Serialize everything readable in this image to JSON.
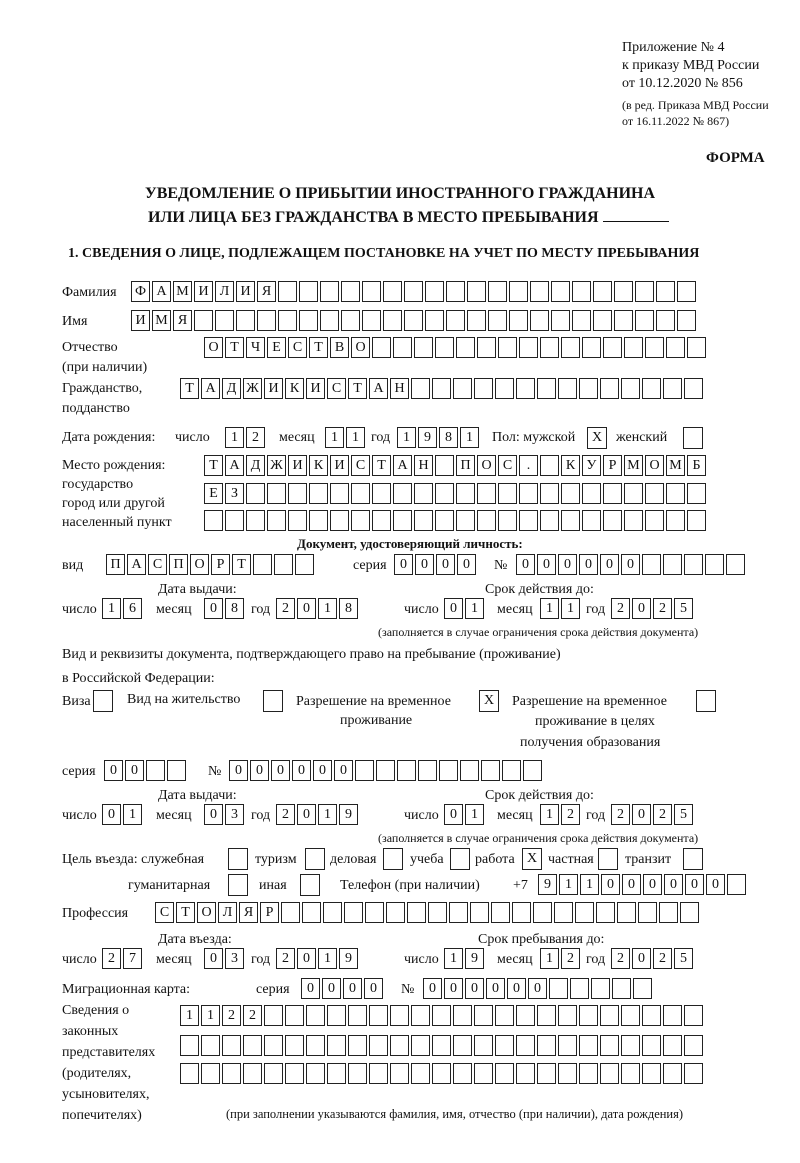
{
  "header": {
    "line1": "Приложение № 4",
    "line2": "к приказу МВД России",
    "line3": "от 10.12.2020 № 856",
    "line4": "(в ред. Приказа МВД России",
    "line5": "от 16.11.2022 № 867)",
    "forma": "ФОРМА",
    "title1": "УВЕДОМЛЕНИЕ О ПРИБЫТИИ ИНОСТРАННОГО ГРАЖДАНИНА",
    "title2": "ИЛИ ЛИЦА БЕЗ ГРАЖДАНСТВА В МЕСТО ПРЕБЫВАНИЯ",
    "section1": "1. СВЕДЕНИЯ О ЛИЦЕ, ПОДЛЕЖАЩЕМ ПОСТАНОВКЕ НА УЧЕТ ПО МЕСТУ ПРЕБЫВАНИЯ"
  },
  "labels": {
    "surname": "Фамилия",
    "name": "Имя",
    "patronymic": "Отчество",
    "patronymic_note": "(при наличии)",
    "citizenship1": "Гражданство,",
    "citizenship2": "подданство",
    "birth_date": "Дата рождения:",
    "day": "число",
    "month": "месяц",
    "year": "год",
    "sex": "Пол: мужской",
    "female": "женский",
    "birthplace1": "Место рождения:",
    "birthplace2": "государство",
    "birthplace3": "город или другой",
    "birthplace4": "населенный пункт",
    "id_doc": "Документ, удостоверяющий личность:",
    "kind": "вид",
    "series": "серия",
    "number": "№",
    "issue_date": "Дата выдачи:",
    "valid_until": "Срок действия до:",
    "valid_note": "(заполняется в случае ограничения срока действия документа)",
    "permit_doc1": "Вид и реквизиты документа, подтверждающего право на пребывание (проживание)",
    "permit_doc2": "в Российской Федерации:",
    "visa": "Виза",
    "residence": "Вид на жительство",
    "trp1": "Разрешение на временное",
    "trp2": "проживание",
    "trp_edu1": "Разрешение на временное",
    "trp_edu2": "проживание в целях",
    "trp_edu3": "получения образования",
    "purpose": "Цель въезда: служебная",
    "tourism": "туризм",
    "business": "деловая",
    "study": "учеба",
    "work": "работа",
    "private": "частная",
    "transit": "транзит",
    "humanitarian": "гуманитарная",
    "other": "иная",
    "phone": "Телефон (при наличии)",
    "phone_prefix": "+7",
    "profession": "Профессия",
    "entry_date": "Дата въезда:",
    "stay_until": "Срок пребывания до:",
    "migration_card": "Миграционная карта:",
    "reps1": "Сведения о",
    "reps2": "законных",
    "reps3": "представителях",
    "reps4": "(родителях,",
    "reps5": "усыновителях,",
    "reps6": "попечителях)",
    "reps_note": "(при заполнении указываются фамилия, имя, отчество (при наличии), дата рождения)"
  },
  "person": {
    "surname": "ФАМИЛИЯ",
    "name": "ИМЯ",
    "patronymic": "ОТЧЕСТВО",
    "citizenship": "ТАДЖИКИСТАН",
    "birth": {
      "day": "12",
      "month": "11",
      "year": "1981"
    },
    "sex_male": "X",
    "sex_female": "",
    "birthplace": [
      "ТАДЖИКИСТАН ПОС. КУРМОМБ",
      "ЕЗ",
      ""
    ]
  },
  "id_document": {
    "kind": "ПАСПОРТ",
    "series": "0000",
    "number": "000000",
    "issue": {
      "day": "16",
      "month": "08",
      "year": "2018"
    },
    "valid": {
      "day": "01",
      "month": "11",
      "year": "2025"
    }
  },
  "permit": {
    "visa": "",
    "residence": "",
    "trp": "X",
    "trp_edu": "",
    "series": "00",
    "number": "000000",
    "issue": {
      "day": "01",
      "month": "03",
      "year": "2019"
    },
    "valid": {
      "day": "01",
      "month": "12",
      "year": "2025"
    }
  },
  "purpose": {
    "official": "",
    "tourism": "",
    "business": "",
    "study": "",
    "work": "X",
    "private": "",
    "transit": "",
    "humanitarian": "",
    "other": ""
  },
  "phone": "911000000",
  "profession": "СТОЛЯР",
  "entry": {
    "day": "27",
    "month": "03",
    "year": "2019"
  },
  "stay_until": {
    "day": "19",
    "month": "12",
    "year": "2025"
  },
  "migration_card": {
    "series": "0000",
    "number": "000000"
  },
  "representatives": [
    "1122",
    "",
    ""
  ]
}
